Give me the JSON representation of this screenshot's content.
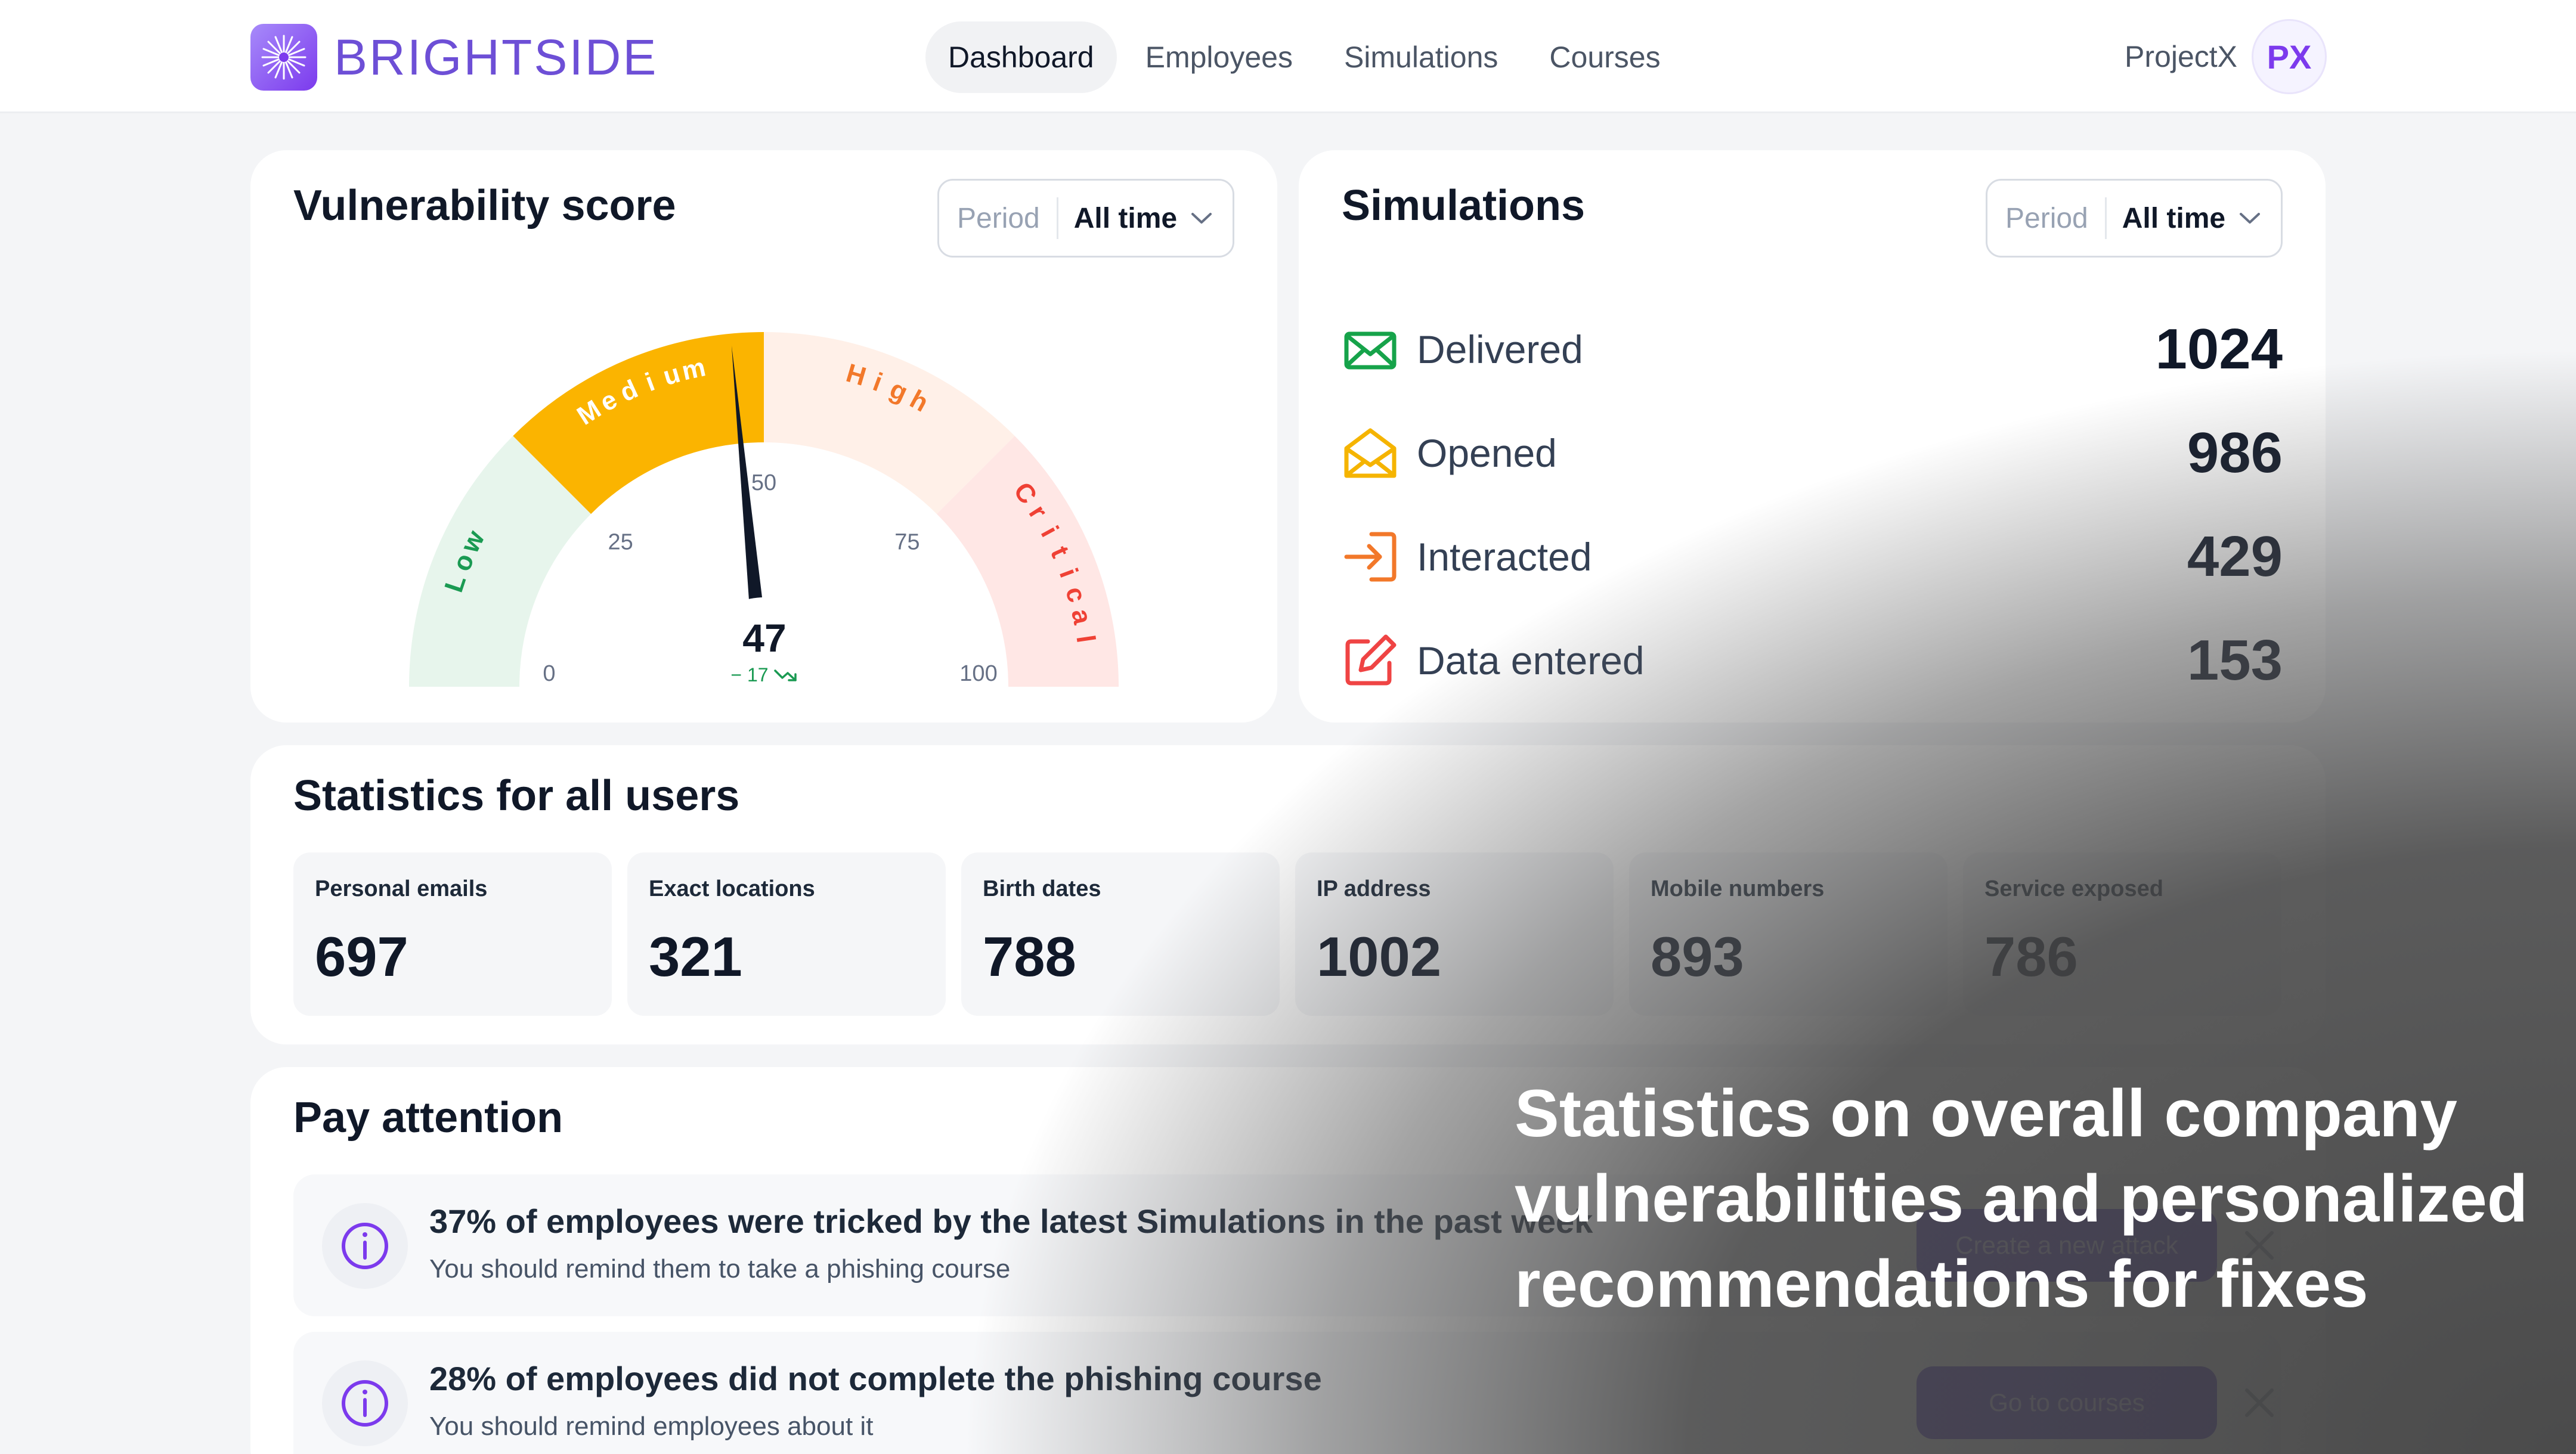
{
  "brand": {
    "name": "BRIGHTSIDE"
  },
  "nav": {
    "items": [
      {
        "label": "Dashboard"
      },
      {
        "label": "Employees"
      },
      {
        "label": "Simulations"
      },
      {
        "label": "Courses"
      }
    ],
    "active": "Dashboard"
  },
  "account": {
    "name": "ProjectX",
    "initials": "PX"
  },
  "vulnerability": {
    "title": "Vulnerability score",
    "period_label": "Period",
    "period_value": "All time",
    "score": 47,
    "change": "− 17",
    "scale": {
      "min": 0,
      "max": 100,
      "ticks": [
        "0",
        "25",
        "50",
        "75",
        "100"
      ]
    },
    "zones": [
      {
        "label": "Low",
        "from": 0,
        "to": 25,
        "fill": "#e7f5ec",
        "text": "#1a9a52"
      },
      {
        "label": "Medium",
        "from": 25,
        "to": 50,
        "fill": "#fbb400",
        "text": "#ffffff"
      },
      {
        "label": "High",
        "from": 50,
        "to": 75,
        "fill": "#fff0e8",
        "text": "#f2782a"
      },
      {
        "label": "Critical",
        "from": 75,
        "to": 100,
        "fill": "#ffe7e5",
        "text": "#ef4135"
      }
    ]
  },
  "simulations": {
    "title": "Simulations",
    "period_label": "Period",
    "period_value": "All time",
    "rows": [
      {
        "icon": "mail-icon",
        "label": "Delivered",
        "value": "1024",
        "color": "#16a34a"
      },
      {
        "icon": "mail-open-icon",
        "label": "Opened",
        "value": "986",
        "color": "#f5b400"
      },
      {
        "icon": "sign-in-icon",
        "label": "Interacted",
        "value": "429",
        "color": "#f2782a"
      },
      {
        "icon": "edit-icon",
        "label": "Data entered",
        "value": "153",
        "color": "#ef4444"
      }
    ]
  },
  "statistics": {
    "title": "Statistics for all users",
    "items": [
      {
        "label": "Personal emails",
        "value": "697"
      },
      {
        "label": "Exact locations",
        "value": "321"
      },
      {
        "label": "Birth dates",
        "value": "788"
      },
      {
        "label": "IP address",
        "value": "1002"
      },
      {
        "label": "Mobile numbers",
        "value": "893"
      },
      {
        "label": "Service exposed",
        "value": "786"
      }
    ]
  },
  "attention": {
    "title": "Pay attention",
    "items": [
      {
        "headline": "37% of employees were tricked by the latest Simulations in the past week",
        "detail": "You should remind them to take a phishing course",
        "action": "Create a new attack"
      },
      {
        "headline": "28% of employees did not complete the phishing course",
        "detail": "You should remind employees about it",
        "action": "Go to courses"
      }
    ]
  },
  "caption": {
    "text": "Statistics on overall company vulnerabilities and personalized recommendations for fixes"
  },
  "colors": {
    "accent": "#6d4fd6",
    "button": "#5b3fd0",
    "background": "#f4f5f7",
    "card": "#ffffff"
  }
}
